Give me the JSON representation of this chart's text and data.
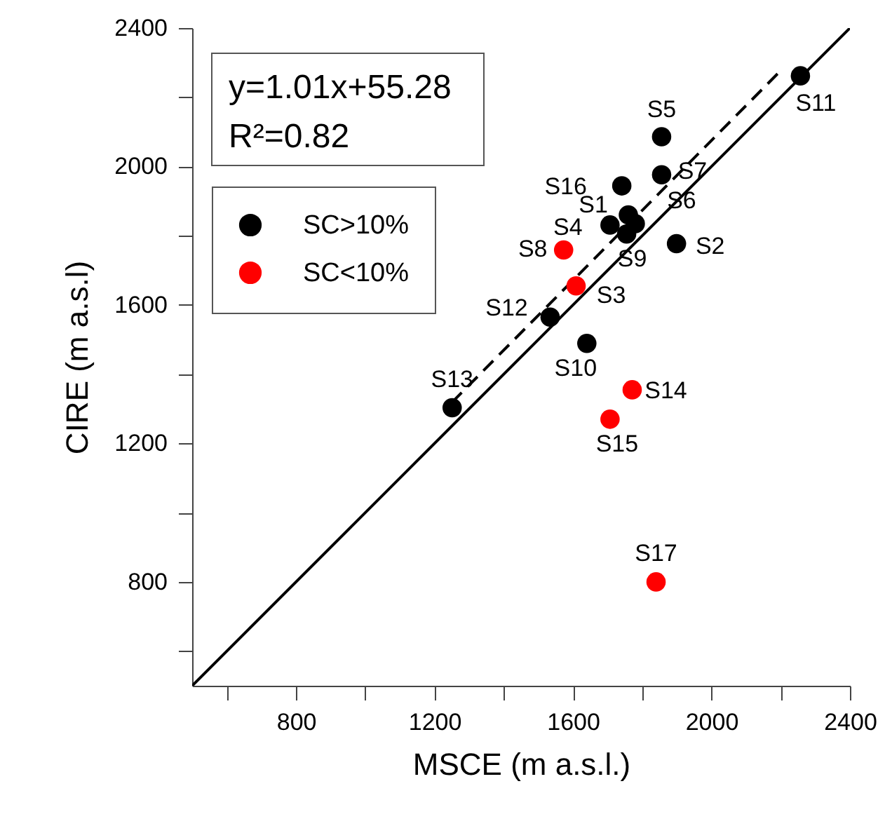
{
  "chart_data": {
    "type": "scatter",
    "xlabel": "MSCE (m a.s.l.)",
    "ylabel": "CIRE (m a.s.l)",
    "xlim": [
      500,
      2400
    ],
    "ylim": [
      500,
      2400
    ],
    "xticks": [
      {
        "value": 600,
        "label": null
      },
      800,
      {
        "value": 1000,
        "label": null
      },
      1200,
      {
        "value": 1400,
        "label": null
      },
      1600,
      {
        "value": 1800,
        "label": null
      },
      2000,
      {
        "value": 2200,
        "label": null
      },
      2400
    ],
    "yticks": [
      {
        "value": 600,
        "label": null
      },
      800,
      {
        "value": 1000,
        "label": null
      },
      1200,
      {
        "value": 1400,
        "label": null
      },
      1600,
      {
        "value": 1800,
        "label": null
      },
      2000,
      {
        "value": 2200,
        "label": null
      },
      2400
    ],
    "grid": false,
    "legend": "top left",
    "marker": "circle",
    "series": [
      {
        "name": "SC>10%",
        "color": "#000000",
        "x": [
          1760,
          1899,
          1707,
          1856,
          1780,
          1856,
          1755,
          1640,
          2257,
          1534,
          1251,
          1741
        ],
        "values": [
          1860,
          1777,
          1831,
          2086,
          1835,
          1976,
          1805,
          1489,
          2262,
          1565,
          1303,
          1944
        ]
      },
      {
        "name": "SC<10%",
        "color": "#ff0000",
        "x": [
          1609,
          1573,
          1771,
          1707,
          1840
        ],
        "values": [
          1655,
          1759,
          1355,
          1270,
          800
        ]
      },
      {
        "type": "line",
        "color": "#000000",
        "line_style": "solid",
        "marker": "none",
        "x": [
          500,
          2400
        ],
        "values": [
          500,
          2400
        ]
      },
      {
        "type": "line",
        "color": "#000000",
        "line_style": "dashed",
        "marker": "none",
        "x": [
          1250,
          2200
        ],
        "values": [
          1318,
          2277
        ]
      }
    ],
    "annotations": [
      "y=1.01x+55.28",
      "R²=0.82",
      {
        "text": "S1",
        "x": 1760,
        "y": 1860
      },
      {
        "text": "S2",
        "x": 1899,
        "y": 1777
      },
      {
        "text": "S3",
        "x": 1609,
        "y": 1655
      },
      {
        "text": "S4",
        "x": 1707,
        "y": 1831
      },
      {
        "text": "S5",
        "x": 1856,
        "y": 2086
      },
      {
        "text": "S6",
        "x": 1780,
        "y": 1835
      },
      {
        "text": "S7",
        "x": 1856,
        "y": 1976
      },
      {
        "text": "S8",
        "x": 1573,
        "y": 1759
      },
      {
        "text": "S9",
        "x": 1755,
        "y": 1805
      },
      {
        "text": "S10",
        "x": 1640,
        "y": 1489
      },
      {
        "text": "S11",
        "x": 2257,
        "y": 2262
      },
      {
        "text": "S12",
        "x": 1534,
        "y": 1565
      },
      {
        "text": "S13",
        "x": 1251,
        "y": 1303
      },
      {
        "text": "S14",
        "x": 1771,
        "y": 1355
      },
      {
        "text": "S15",
        "x": 1707,
        "y": 1270
      },
      {
        "text": "S16",
        "x": 1741,
        "y": 1944
      },
      {
        "text": "S17",
        "x": 1840,
        "y": 800
      }
    ]
  }
}
